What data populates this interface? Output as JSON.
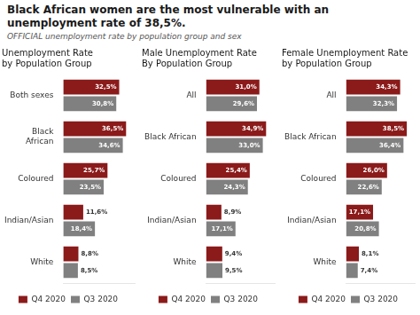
{
  "title": "Black African women are the most vulnerable with an\nunemployment rate of 38,5%.",
  "subtitle": "OFFICIAL unemployment rate by population group and sex",
  "chart_data": [
    {
      "type": "bar",
      "orientation": "horizontal",
      "title": "Unemployment Rate\nby Population Group",
      "categories": [
        "Both sexes",
        "Black\nAfrican",
        "Coloured",
        "Indian/Asian",
        "White"
      ],
      "series": [
        {
          "name": "Q4 2020",
          "color": "#8B1A1A",
          "values": [
            32.5,
            36.5,
            25.7,
            11.6,
            8.8
          ],
          "value_labels": [
            "32,5%",
            "36,5%",
            "25,7%",
            "11,6%",
            "8,8%"
          ]
        },
        {
          "name": "Q3 2020",
          "color": "#808080",
          "values": [
            30.8,
            34.6,
            23.5,
            18.4,
            8.5
          ],
          "value_labels": [
            "30,8%",
            "34,6%",
            "23,5%",
            "18,4%",
            "8,5%"
          ]
        }
      ],
      "xlim": [
        0,
        41.5
      ],
      "grid": false,
      "legend": "bottom",
      "data_labels": true,
      "tick_labels": "y"
    },
    {
      "type": "bar",
      "orientation": "horizontal",
      "title": "Male Unemployment Rate\nBy Population Group",
      "categories": [
        "All",
        "Black African",
        "Coloured",
        "Indian/Asian",
        "White"
      ],
      "series": [
        {
          "name": "Q4 2020",
          "color": "#8B1A1A",
          "values": [
            31.0,
            34.9,
            25.4,
            8.9,
            9.4
          ],
          "value_labels": [
            "31,0%",
            "34,9%",
            "25,4%",
            "8,9%",
            "9,4%"
          ]
        },
        {
          "name": "Q3 2020",
          "color": "#808080",
          "values": [
            29.6,
            33.0,
            24.3,
            17.1,
            9.5
          ],
          "value_labels": [
            "29,6%",
            "33,0%",
            "24,3%",
            "17,1%",
            "9,5%"
          ]
        }
      ],
      "xlim": [
        0,
        39.9
      ],
      "grid": false,
      "legend": "bottom",
      "data_labels": true,
      "tick_labels": "y"
    },
    {
      "type": "bar",
      "orientation": "horizontal",
      "title": "Female Unemployment Rate\nby Population Group",
      "categories": [
        "All",
        "Black African",
        "Coloured",
        "Indian/Asian",
        "White"
      ],
      "series": [
        {
          "name": "Q4 2020",
          "color": "#8B1A1A",
          "values": [
            34.3,
            38.5,
            26.0,
            17.1,
            8.1
          ],
          "value_labels": [
            "34,3%",
            "38,5%",
            "26,0%",
            "17,1%",
            "8,1%"
          ]
        },
        {
          "name": "Q3 2020",
          "color": "#808080",
          "values": [
            32.3,
            36.4,
            22.6,
            20.8,
            7.4
          ],
          "value_labels": [
            "32,3%",
            "36,4%",
            "22,6%",
            "20,8%",
            "7,4%"
          ]
        }
      ],
      "xlim": [
        0,
        43.5
      ],
      "grid": false,
      "legend": "bottom",
      "data_labels": true,
      "tick_labels": "y"
    }
  ]
}
